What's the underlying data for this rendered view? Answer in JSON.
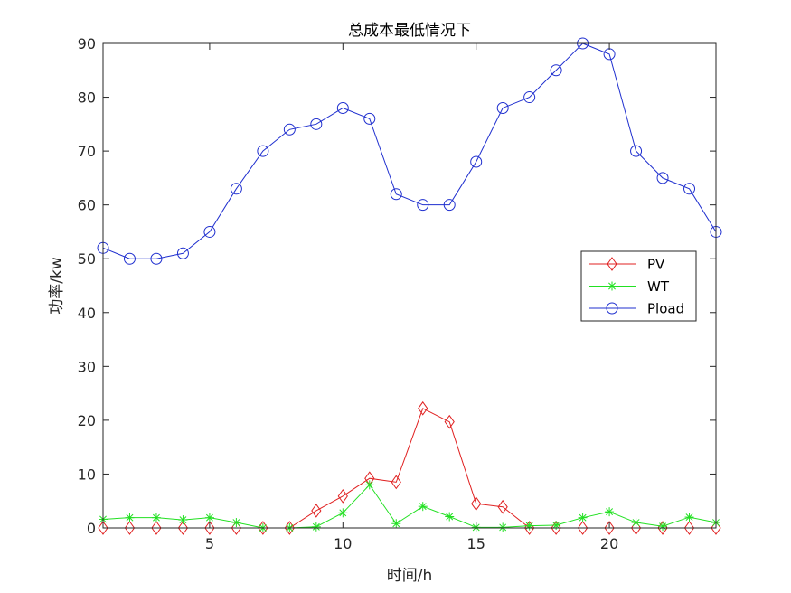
{
  "chart_data": {
    "type": "line",
    "title": "总成本最低情况下",
    "xlabel": "时间/h",
    "ylabel": "功率/kw",
    "xlim": [
      1,
      24
    ],
    "ylim": [
      0,
      90
    ],
    "xticks": [
      5,
      10,
      15,
      20
    ],
    "yticks": [
      0,
      10,
      20,
      30,
      40,
      50,
      60,
      70,
      80,
      90
    ],
    "grid": false,
    "legend_position": "right",
    "x": [
      1,
      2,
      3,
      4,
      5,
      6,
      7,
      8,
      9,
      10,
      11,
      12,
      13,
      14,
      15,
      16,
      17,
      18,
      19,
      20,
      21,
      22,
      23,
      24
    ],
    "series": [
      {
        "name": "PV",
        "color": "#e02020",
        "marker": "diamond",
        "values": [
          0,
          0,
          0,
          0,
          0,
          0,
          0,
          0,
          3.2,
          5.9,
          9.2,
          8.5,
          22.2,
          19.7,
          4.5,
          3.9,
          0,
          0,
          0,
          0,
          0,
          0,
          0,
          0
        ]
      },
      {
        "name": "WT",
        "color": "#22e022",
        "marker": "asterisk",
        "values": [
          1.6,
          1.9,
          1.9,
          1.5,
          1.9,
          1.0,
          0,
          0,
          0.2,
          2.8,
          8.0,
          0.8,
          4.0,
          2.1,
          0.1,
          0.1,
          0.4,
          0.5,
          1.9,
          3.0,
          1.0,
          0.3,
          2.0,
          1.0
        ]
      },
      {
        "name": "Pload",
        "color": "#1f2fcf",
        "marker": "circle",
        "values": [
          52,
          50,
          50,
          51,
          55,
          63,
          70,
          74,
          75,
          78,
          76,
          62,
          60,
          60,
          68,
          78,
          80,
          85,
          90,
          88,
          70,
          65,
          63,
          55
        ]
      }
    ]
  }
}
